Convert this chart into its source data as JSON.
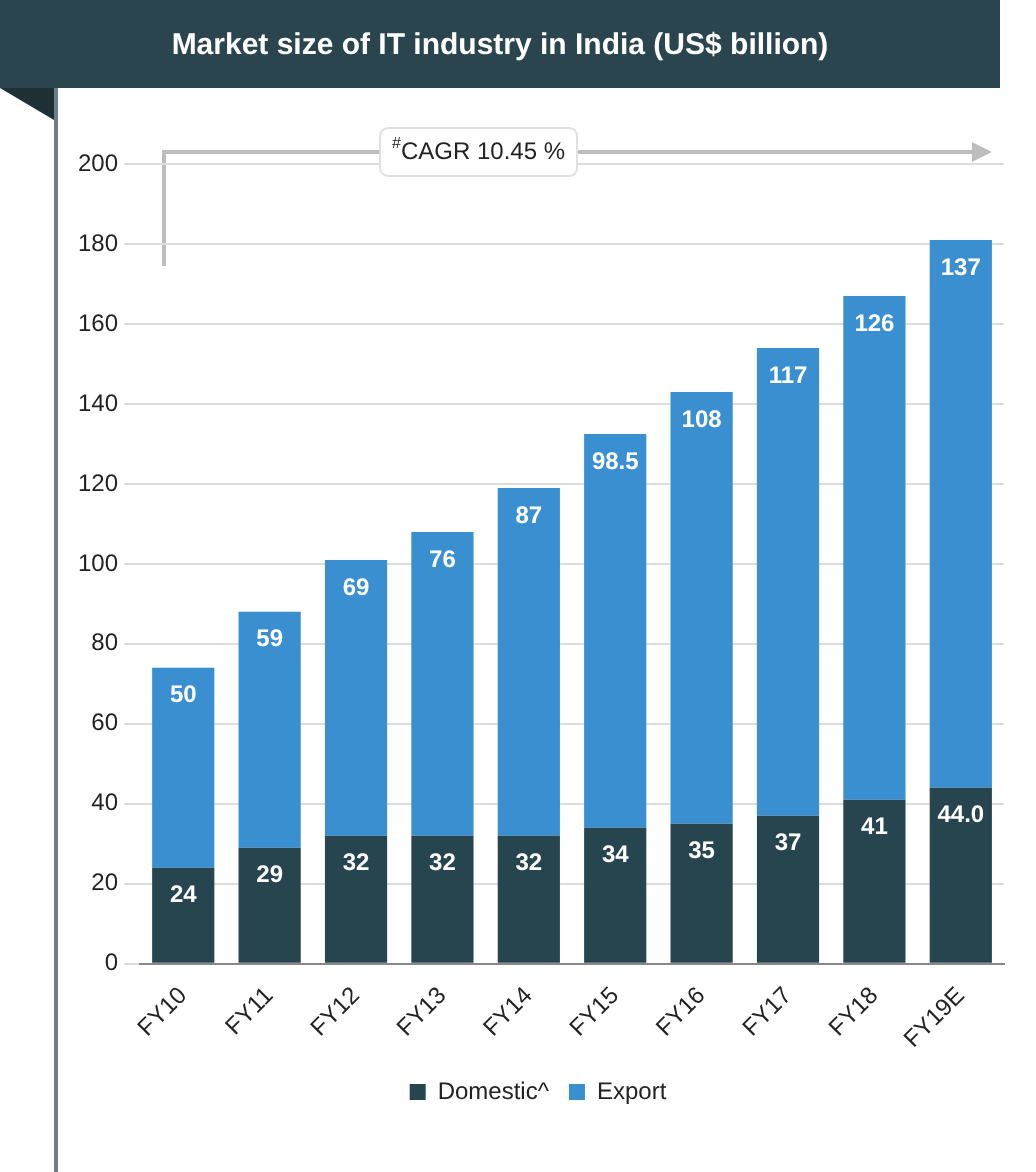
{
  "chart_data": {
    "type": "bar",
    "title": "Market size of IT industry in India (US$ billion)",
    "stacked": true,
    "categories": [
      "FY10",
      "FY11",
      "FY12",
      "FY13",
      "FY14",
      "FY15",
      "FY16",
      "FY17",
      "FY18",
      "FY19E"
    ],
    "series": [
      {
        "name": "Domestic^",
        "color": "#27454f",
        "values": [
          24,
          29,
          32,
          32,
          32,
          34,
          35,
          37,
          41,
          44.0
        ],
        "value_labels": [
          "24",
          "29",
          "32",
          "32",
          "32",
          "34",
          "35",
          "37",
          "41",
          "44.0"
        ]
      },
      {
        "name": "Export",
        "color": "#3a8fd0",
        "values": [
          50,
          59,
          69,
          76,
          87,
          98.5,
          108,
          117,
          126,
          137
        ],
        "value_labels": [
          "50",
          "59",
          "69",
          "76",
          "87",
          "98.5",
          "108",
          "117",
          "126",
          "137"
        ]
      }
    ],
    "ylim": [
      0,
      200
    ],
    "yticks": [
      0,
      20,
      40,
      60,
      80,
      100,
      120,
      140,
      160,
      180,
      200
    ],
    "grid": "y",
    "legend": "bottom",
    "annotations": [
      "$^{#}$CAGR 10.45 %"
    ]
  }
}
